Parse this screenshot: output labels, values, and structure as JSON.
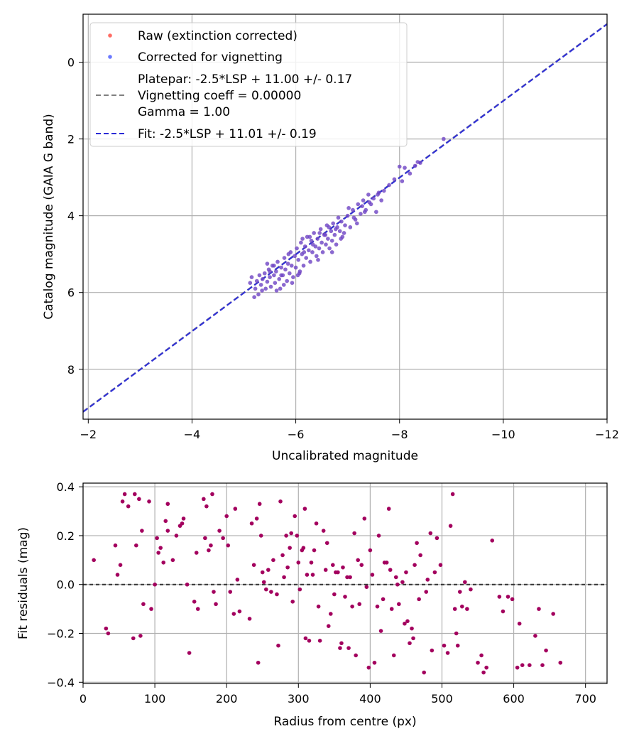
{
  "colors": {
    "raw": "#ff3b30",
    "corrected": "#3a4cff",
    "blend": "#6a1fc4",
    "residual": "#a3005e",
    "platepar_line": "#808080",
    "fit_line": "#2a2ad6",
    "grid": "#b0b0b0"
  },
  "chart_data": [
    {
      "type": "scatter",
      "xlabel": "Uncalibrated magnitude",
      "ylabel": "Catalog magnitude (GAIA G band)",
      "xlim": [
        -1.9,
        -12
      ],
      "ylim": [
        9.3,
        -1.25
      ],
      "x_ticks": [
        -2,
        -4,
        -6,
        -8,
        -10,
        -12
      ],
      "x_tick_labels": [
        "−2",
        "−4",
        "−6",
        "−8",
        "−10",
        "−12"
      ],
      "y_ticks": [
        0,
        2,
        4,
        6,
        8
      ],
      "y_tick_labels": [
        "0",
        "2",
        "4",
        "6",
        "8"
      ],
      "grid": true,
      "legend_position": "top-left",
      "legend": [
        {
          "label": "Raw (extinction corrected)",
          "kind": "marker",
          "color": "#ff3b30"
        },
        {
          "label": "Corrected for vignetting",
          "kind": "marker",
          "color": "#3a4cff"
        },
        {
          "label_lines": [
            "Platepar: -2.5*LSP + 11.00 +/- 0.17",
            "Vignetting coeff = 0.00000",
            "Gamma = 1.00"
          ],
          "kind": "dashed-line",
          "color": "#808080"
        },
        {
          "label": "Fit: -2.5*LSP + 11.01 +/- 0.19",
          "kind": "dashed-line",
          "color": "#2a2ad6"
        }
      ],
      "lines": [
        {
          "name": "Platepar",
          "slope": 1,
          "intercept": 11.0
        },
        {
          "name": "Fit",
          "slope": 1,
          "intercept": 11.01
        }
      ],
      "points": [
        [
          -5.12,
          5.75
        ],
        [
          -5.15,
          5.6
        ],
        [
          -5.2,
          6.12
        ],
        [
          -5.25,
          5.7
        ],
        [
          -5.28,
          6.05
        ],
        [
          -5.3,
          5.55
        ],
        [
          -5.33,
          5.8
        ],
        [
          -5.36,
          5.65
        ],
        [
          -5.4,
          5.5
        ],
        [
          -5.42,
          5.9
        ],
        [
          -5.45,
          5.72
        ],
        [
          -5.48,
          5.4
        ],
        [
          -5.5,
          5.6
        ],
        [
          -5.52,
          5.85
        ],
        [
          -5.55,
          5.3
        ],
        [
          -5.58,
          5.55
        ],
        [
          -5.6,
          5.75
        ],
        [
          -5.62,
          5.45
        ],
        [
          -5.65,
          5.2
        ],
        [
          -5.68,
          5.65
        ],
        [
          -5.7,
          5.9
        ],
        [
          -5.72,
          5.35
        ],
        [
          -5.75,
          5.55
        ],
        [
          -5.78,
          5.1
        ],
        [
          -5.8,
          5.4
        ],
        [
          -5.83,
          5.7
        ],
        [
          -5.85,
          5.25
        ],
        [
          -5.88,
          5.5
        ],
        [
          -5.9,
          4.95
        ],
        [
          -5.92,
          5.3
        ],
        [
          -5.95,
          5.6
        ],
        [
          -5.98,
          5.05
        ],
        [
          -6.0,
          5.35
        ],
        [
          -6.02,
          4.85
        ],
        [
          -6.05,
          5.15
        ],
        [
          -6.08,
          5.45
        ],
        [
          -6.1,
          4.7
        ],
        [
          -6.12,
          5.0
        ],
        [
          -6.15,
          5.3
        ],
        [
          -6.18,
          4.8
        ],
        [
          -6.2,
          5.1
        ],
        [
          -6.22,
          4.55
        ],
        [
          -6.25,
          4.9
        ],
        [
          -6.28,
          5.2
        ],
        [
          -6.3,
          4.65
        ],
        [
          -6.32,
          4.95
        ],
        [
          -6.35,
          4.45
        ],
        [
          -6.38,
          4.8
        ],
        [
          -6.4,
          5.05
        ],
        [
          -6.42,
          4.6
        ],
        [
          -6.45,
          4.85
        ],
        [
          -6.48,
          4.35
        ],
        [
          -6.5,
          4.7
        ],
        [
          -6.52,
          4.95
        ],
        [
          -6.55,
          4.5
        ],
        [
          -6.58,
          4.75
        ],
        [
          -6.6,
          4.25
        ],
        [
          -6.62,
          4.6
        ],
        [
          -6.65,
          4.85
        ],
        [
          -6.68,
          4.4
        ],
        [
          -6.7,
          4.65
        ],
        [
          -6.72,
          4.2
        ],
        [
          -6.75,
          4.5
        ],
        [
          -6.78,
          4.75
        ],
        [
          -6.8,
          4.3
        ],
        [
          -6.82,
          4.05
        ],
        [
          -6.85,
          4.4
        ],
        [
          -6.88,
          4.15
        ],
        [
          -6.9,
          4.55
        ],
        [
          -6.95,
          4.25
        ],
        [
          -7.0,
          4.0
        ],
        [
          -7.05,
          4.3
        ],
        [
          -7.1,
          3.85
        ],
        [
          -7.15,
          4.1
        ],
        [
          -7.2,
          3.7
        ],
        [
          -7.25,
          3.95
        ],
        [
          -7.3,
          3.6
        ],
        [
          -7.35,
          3.85
        ],
        [
          -7.4,
          3.45
        ],
        [
          -7.45,
          3.7
        ],
        [
          -7.5,
          3.55
        ],
        [
          -7.55,
          3.9
        ],
        [
          -7.6,
          3.4
        ],
        [
          -7.65,
          3.6
        ],
        [
          -7.7,
          3.35
        ],
        [
          -7.8,
          3.2
        ],
        [
          -7.9,
          3.05
        ],
        [
          -8.0,
          2.72
        ],
        [
          -8.05,
          3.1
        ],
        [
          -8.1,
          2.75
        ],
        [
          -8.2,
          2.9
        ],
        [
          -8.3,
          2.7
        ],
        [
          -8.35,
          2.6
        ],
        [
          -8.4,
          2.62
        ],
        [
          -8.85,
          2.0
        ],
        [
          -5.22,
          5.9
        ],
        [
          -5.35,
          5.95
        ],
        [
          -5.5,
          5.45
        ],
        [
          -5.63,
          5.95
        ],
        [
          -5.77,
          5.8
        ],
        [
          -5.93,
          5.75
        ],
        [
          -6.07,
          5.5
        ],
        [
          -6.13,
          4.6
        ],
        [
          -6.27,
          4.55
        ],
        [
          -6.43,
          5.15
        ],
        [
          -6.57,
          4.5
        ],
        [
          -6.7,
          4.95
        ],
        [
          -6.87,
          4.6
        ],
        [
          -7.02,
          3.8
        ],
        [
          -7.18,
          4.2
        ],
        [
          -7.33,
          3.9
        ],
        [
          -5.45,
          5.25
        ],
        [
          -5.58,
          5.3
        ],
        [
          -5.72,
          5.55
        ],
        [
          -5.86,
          5.0
        ],
        [
          -6.04,
          5.55
        ],
        [
          -6.16,
          4.95
        ],
        [
          -6.33,
          4.75
        ],
        [
          -6.46,
          4.45
        ],
        [
          -6.64,
          4.3
        ],
        [
          -6.77,
          4.35
        ],
        [
          -6.93,
          4.45
        ],
        [
          -7.12,
          4.05
        ],
        [
          -7.28,
          3.75
        ],
        [
          -7.42,
          3.65
        ],
        [
          -7.58,
          3.45
        ]
      ]
    },
    {
      "type": "scatter",
      "xlabel": "Radius from centre (px)",
      "ylabel": "Fit residuals (mag)",
      "xlim": [
        0,
        730
      ],
      "ylim": [
        -0.405,
        0.415
      ],
      "x_ticks": [
        0,
        100,
        200,
        300,
        400,
        500,
        600,
        700
      ],
      "x_tick_labels": [
        "0",
        "100",
        "200",
        "300",
        "400",
        "500",
        "600",
        "700"
      ],
      "y_ticks": [
        0.4,
        0.2,
        0.0,
        -0.2,
        -0.4
      ],
      "y_tick_labels": [
        "0.4",
        "0.2",
        "0.0",
        "−0.2",
        "−0.4"
      ],
      "grid": true,
      "reference_line": 0.0,
      "points": [
        [
          15,
          0.1
        ],
        [
          32,
          -0.18
        ],
        [
          35,
          -0.2
        ],
        [
          45,
          0.16
        ],
        [
          48,
          0.04
        ],
        [
          52,
          0.08
        ],
        [
          55,
          0.34
        ],
        [
          58,
          0.37
        ],
        [
          63,
          0.32
        ],
        [
          70,
          -0.22
        ],
        [
          72,
          0.37
        ],
        [
          74,
          0.16
        ],
        [
          78,
          0.35
        ],
        [
          80,
          -0.21
        ],
        [
          82,
          0.22
        ],
        [
          84,
          -0.08
        ],
        [
          92,
          0.34
        ],
        [
          95,
          -0.1
        ],
        [
          100,
          0.0
        ],
        [
          103,
          0.19
        ],
        [
          105,
          0.13
        ],
        [
          108,
          0.15
        ],
        [
          112,
          0.09
        ],
        [
          115,
          0.26
        ],
        [
          118,
          0.22
        ],
        [
          118,
          0.33
        ],
        [
          125,
          0.1
        ],
        [
          130,
          0.2
        ],
        [
          135,
          0.24
        ],
        [
          138,
          0.25
        ],
        [
          140,
          0.27
        ],
        [
          145,
          0.0
        ],
        [
          148,
          -0.28
        ],
        [
          155,
          -0.07
        ],
        [
          158,
          0.13
        ],
        [
          160,
          -0.1
        ],
        [
          168,
          0.35
        ],
        [
          170,
          0.19
        ],
        [
          172,
          0.32
        ],
        [
          175,
          0.14
        ],
        [
          178,
          0.16
        ],
        [
          180,
          0.37
        ],
        [
          182,
          -0.03
        ],
        [
          185,
          -0.08
        ],
        [
          190,
          0.22
        ],
        [
          195,
          0.19
        ],
        [
          200,
          0.28
        ],
        [
          202,
          0.16
        ],
        [
          205,
          -0.03
        ],
        [
          210,
          -0.12
        ],
        [
          212,
          0.31
        ],
        [
          215,
          0.02
        ],
        [
          218,
          -0.11
        ],
        [
          232,
          -0.14
        ],
        [
          235,
          0.25
        ],
        [
          238,
          0.08
        ],
        [
          242,
          0.27
        ],
        [
          244,
          -0.32
        ],
        [
          246,
          0.33
        ],
        [
          248,
          0.2
        ],
        [
          250,
          0.05
        ],
        [
          252,
          0.01
        ],
        [
          255,
          -0.02
        ],
        [
          258,
          0.06
        ],
        [
          262,
          -0.03
        ],
        [
          265,
          0.1
        ],
        [
          270,
          -0.04
        ],
        [
          272,
          -0.25
        ],
        [
          275,
          0.34
        ],
        [
          278,
          0.12
        ],
        [
          280,
          0.03
        ],
        [
          283,
          0.2
        ],
        [
          285,
          0.07
        ],
        [
          288,
          0.15
        ],
        [
          290,
          0.21
        ],
        [
          292,
          -0.07
        ],
        [
          295,
          0.28
        ],
        [
          298,
          0.2
        ],
        [
          300,
          0.09
        ],
        [
          302,
          -0.02
        ],
        [
          305,
          0.14
        ],
        [
          307,
          0.15
        ],
        [
          309,
          0.31
        ],
        [
          310,
          -0.22
        ],
        [
          312,
          0.04
        ],
        [
          315,
          -0.23
        ],
        [
          318,
          0.09
        ],
        [
          320,
          0.04
        ],
        [
          322,
          0.14
        ],
        [
          325,
          0.25
        ],
        [
          328,
          -0.09
        ],
        [
          330,
          -0.23
        ],
        [
          335,
          0.22
        ],
        [
          338,
          0.06
        ],
        [
          340,
          0.17
        ],
        [
          342,
          -0.17
        ],
        [
          345,
          -0.12
        ],
        [
          348,
          0.08
        ],
        [
          350,
          -0.04
        ],
        [
          352,
          0.05
        ],
        [
          355,
          0.05
        ],
        [
          358,
          -0.26
        ],
        [
          360,
          -0.24
        ],
        [
          362,
          0.07
        ],
        [
          365,
          -0.05
        ],
        [
          368,
          0.03
        ],
        [
          370,
          -0.26
        ],
        [
          372,
          0.03
        ],
        [
          375,
          -0.09
        ],
        [
          378,
          0.21
        ],
        [
          380,
          -0.29
        ],
        [
          383,
          0.1
        ],
        [
          385,
          -0.08
        ],
        [
          388,
          0.08
        ],
        [
          392,
          0.27
        ],
        [
          395,
          -0.01
        ],
        [
          398,
          -0.34
        ],
        [
          400,
          0.14
        ],
        [
          403,
          0.04
        ],
        [
          406,
          -0.32
        ],
        [
          410,
          -0.09
        ],
        [
          412,
          0.2
        ],
        [
          415,
          -0.19
        ],
        [
          418,
          -0.06
        ],
        [
          420,
          0.09
        ],
        [
          423,
          0.09
        ],
        [
          426,
          0.31
        ],
        [
          428,
          0.06
        ],
        [
          430,
          -0.1
        ],
        [
          433,
          -0.29
        ],
        [
          436,
          0.03
        ],
        [
          438,
          0.0
        ],
        [
          440,
          -0.08
        ],
        [
          445,
          0.01
        ],
        [
          448,
          -0.16
        ],
        [
          450,
          0.05
        ],
        [
          452,
          -0.15
        ],
        [
          455,
          -0.24
        ],
        [
          458,
          -0.18
        ],
        [
          460,
          -0.22
        ],
        [
          462,
          0.08
        ],
        [
          465,
          0.17
        ],
        [
          468,
          -0.06
        ],
        [
          470,
          0.12
        ],
        [
          475,
          -0.36
        ],
        [
          478,
          -0.03
        ],
        [
          480,
          0.02
        ],
        [
          484,
          0.21
        ],
        [
          486,
          -0.27
        ],
        [
          490,
          0.05
        ],
        [
          493,
          0.19
        ],
        [
          498,
          0.08
        ],
        [
          503,
          -0.25
        ],
        [
          508,
          -0.28
        ],
        [
          512,
          0.24
        ],
        [
          515,
          0.37
        ],
        [
          518,
          -0.1
        ],
        [
          520,
          -0.2
        ],
        [
          522,
          -0.25
        ],
        [
          525,
          -0.03
        ],
        [
          528,
          -0.09
        ],
        [
          532,
          0.01
        ],
        [
          535,
          -0.1
        ],
        [
          540,
          -0.02
        ],
        [
          550,
          -0.32
        ],
        [
          555,
          -0.29
        ],
        [
          558,
          -0.36
        ],
        [
          562,
          -0.34
        ],
        [
          570,
          0.18
        ],
        [
          580,
          -0.05
        ],
        [
          585,
          -0.11
        ],
        [
          592,
          -0.05
        ],
        [
          598,
          -0.06
        ],
        [
          605,
          -0.34
        ],
        [
          608,
          -0.16
        ],
        [
          612,
          -0.33
        ],
        [
          622,
          -0.33
        ],
        [
          630,
          -0.21
        ],
        [
          635,
          -0.1
        ],
        [
          640,
          -0.33
        ],
        [
          645,
          -0.27
        ],
        [
          655,
          -0.12
        ],
        [
          665,
          -0.32
        ]
      ]
    }
  ]
}
